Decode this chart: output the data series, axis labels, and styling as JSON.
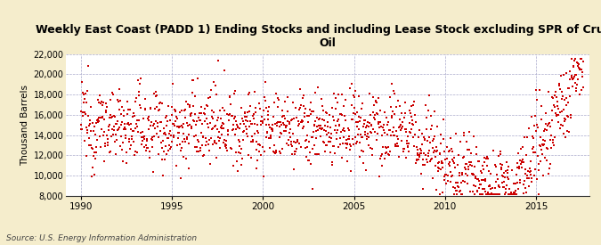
{
  "title": "Weekly East Coast (PADD 1) Ending Stocks and including Lease Stock excluding SPR of Crude\nOil",
  "ylabel": "Thousand Barrels",
  "source": "Source: U.S. Energy Information Administration",
  "fig_bg_color": "#f5edcc",
  "plot_bg_color": "#ffffff",
  "marker_color": "#cc0000",
  "ylim": [
    8000,
    22000
  ],
  "yticks": [
    8000,
    10000,
    12000,
    14000,
    16000,
    18000,
    20000,
    22000
  ],
  "xticks": [
    1990,
    1995,
    2000,
    2005,
    2010,
    2015
  ],
  "xlim_start": 1989.2,
  "xlim_end": 2017.9,
  "seed": 12345
}
